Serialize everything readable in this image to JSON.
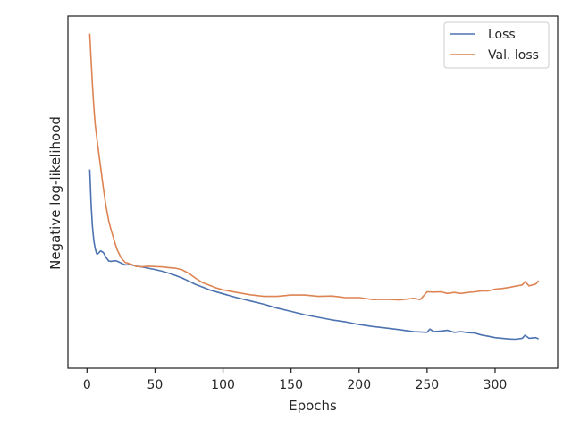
{
  "chart_data": {
    "type": "line",
    "title": "",
    "xlabel": "Epochs",
    "ylabel": "Negative log-likelihood",
    "xlim": [
      -14,
      346
    ],
    "ylim": [
      0,
      1
    ],
    "xticks": [
      0,
      50,
      100,
      150,
      200,
      250,
      300
    ],
    "y_tick_labels_shown": false,
    "grid": false,
    "legend_position": "top-right",
    "series": [
      {
        "name": "Loss",
        "color": "#4c72b0",
        "x": [
          2,
          3,
          4,
          5,
          6,
          7,
          8,
          10,
          12,
          14,
          16,
          18,
          20,
          22,
          25,
          28,
          32,
          36,
          40,
          45,
          50,
          55,
          60,
          65,
          70,
          75,
          80,
          85,
          90,
          100,
          110,
          120,
          130,
          140,
          150,
          160,
          170,
          180,
          190,
          200,
          210,
          220,
          230,
          240,
          250,
          252,
          255,
          260,
          265,
          270,
          275,
          280,
          285,
          290,
          295,
          300,
          305,
          310,
          315,
          320,
          322,
          325,
          330,
          332
        ],
        "y": [
          0.564,
          0.458,
          0.389,
          0.347,
          0.323,
          0.307,
          0.306,
          0.315,
          0.31,
          0.295,
          0.284,
          0.283,
          0.285,
          0.284,
          0.278,
          0.272,
          0.273,
          0.268,
          0.266,
          0.262,
          0.258,
          0.253,
          0.247,
          0.24,
          0.232,
          0.222,
          0.212,
          0.204,
          0.196,
          0.184,
          0.172,
          0.162,
          0.152,
          0.14,
          0.13,
          0.12,
          0.112,
          0.104,
          0.098,
          0.09,
          0.084,
          0.079,
          0.074,
          0.068,
          0.066,
          0.076,
          0.068,
          0.07,
          0.072,
          0.066,
          0.068,
          0.065,
          0.064,
          0.058,
          0.054,
          0.05,
          0.048,
          0.046,
          0.045,
          0.048,
          0.057,
          0.048,
          0.05,
          0.046
        ]
      },
      {
        "name": "Val. loss",
        "color": "#dd8452",
        "x": [
          2,
          3,
          4,
          5,
          6,
          7,
          8,
          10,
          12,
          14,
          16,
          18,
          20,
          22,
          25,
          28,
          32,
          36,
          40,
          45,
          50,
          55,
          60,
          65,
          70,
          75,
          80,
          85,
          90,
          95,
          100,
          110,
          120,
          130,
          140,
          150,
          160,
          170,
          180,
          190,
          200,
          210,
          220,
          230,
          240,
          245,
          250,
          255,
          260,
          265,
          270,
          275,
          280,
          285,
          290,
          295,
          300,
          305,
          310,
          315,
          320,
          322,
          325,
          330,
          332
        ],
        "y": [
          0.979,
          0.898,
          0.822,
          0.757,
          0.703,
          0.667,
          0.635,
          0.572,
          0.507,
          0.451,
          0.406,
          0.375,
          0.347,
          0.32,
          0.294,
          0.28,
          0.275,
          0.268,
          0.266,
          0.268,
          0.267,
          0.266,
          0.264,
          0.262,
          0.257,
          0.246,
          0.231,
          0.218,
          0.21,
          0.202,
          0.196,
          0.188,
          0.181,
          0.176,
          0.176,
          0.18,
          0.18,
          0.176,
          0.177,
          0.172,
          0.172,
          0.166,
          0.167,
          0.165,
          0.17,
          0.166,
          0.19,
          0.189,
          0.19,
          0.185,
          0.188,
          0.185,
          0.188,
          0.19,
          0.193,
          0.193,
          0.198,
          0.2,
          0.203,
          0.207,
          0.211,
          0.221,
          0.208,
          0.214,
          0.224
        ]
      }
    ]
  }
}
